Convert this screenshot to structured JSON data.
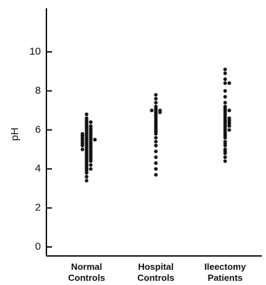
{
  "chart_data": {
    "type": "scatter",
    "title": "",
    "xlabel": "",
    "ylabel": "pH",
    "ylim": [
      0,
      12
    ],
    "yticks": [
      0,
      2,
      4,
      6,
      8,
      10
    ],
    "grid": false,
    "legend": "none",
    "categories": [
      {
        "line1": "Normal",
        "line2": "Controls"
      },
      {
        "line1": "Hospital",
        "line2": "Controls"
      },
      {
        "line1": "Ileectomy",
        "line2": "Patients"
      }
    ],
    "series": [
      {
        "values": [
          3.4,
          3.6,
          3.8,
          3.9,
          4.0,
          4.0,
          4.1,
          4.2,
          4.2,
          4.3,
          4.4,
          4.4,
          4.5,
          4.5,
          4.6,
          4.6,
          4.7,
          4.7,
          4.8,
          4.8,
          4.9,
          4.9,
          5.0,
          5.0,
          5.0,
          5.1,
          5.1,
          5.2,
          5.2,
          5.2,
          5.3,
          5.3,
          5.3,
          5.4,
          5.4,
          5.4,
          5.5,
          5.5,
          5.5,
          5.5,
          5.6,
          5.6,
          5.6,
          5.7,
          5.7,
          5.7,
          5.8,
          5.8,
          5.8,
          5.9,
          5.9,
          6.0,
          6.0,
          6.1,
          6.1,
          6.2,
          6.2,
          6.3,
          6.4,
          6.4,
          6.5,
          6.6,
          6.8
        ]
      },
      {
        "values": [
          3.7,
          4.0,
          4.3,
          4.6,
          4.9,
          5.2,
          5.4,
          5.6,
          5.8,
          5.9,
          6.0,
          6.1,
          6.2,
          6.3,
          6.4,
          6.5,
          6.6,
          6.7,
          6.8,
          6.9,
          6.9,
          7.0,
          7.0,
          7.0,
          7.1,
          7.2,
          7.4,
          7.6,
          7.8
        ]
      },
      {
        "values": [
          4.4,
          4.6,
          4.8,
          4.9,
          5.0,
          5.2,
          5.3,
          5.4,
          5.6,
          5.7,
          5.8,
          5.9,
          6.0,
          6.0,
          6.1,
          6.2,
          6.2,
          6.3,
          6.3,
          6.4,
          6.4,
          6.5,
          6.5,
          6.6,
          6.6,
          6.7,
          6.8,
          6.9,
          7.0,
          7.0,
          7.1,
          7.2,
          7.4,
          7.7,
          8.0,
          8.4,
          8.4,
          8.6,
          8.9,
          9.1
        ]
      }
    ]
  }
}
